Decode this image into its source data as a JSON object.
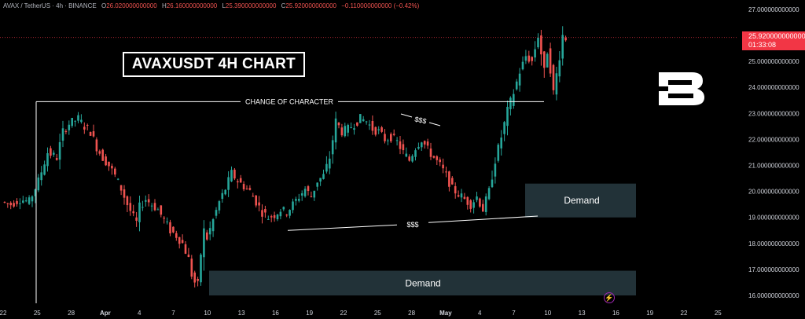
{
  "header": {
    "symbol": "AVAX / TetherUS · 4h · BINANCE",
    "o_label": "O",
    "o_value": "26.020000000000",
    "h_label": "H",
    "h_value": "26.160000000000",
    "l_label": "L",
    "l_value": "25.390000000000",
    "c_label": "C",
    "c_value": "25.920000000000",
    "change": "−0.110000000000 (−0.42%)"
  },
  "chart_title": "AVAXUSDT 4H CHART",
  "annotations": {
    "choch": "CHANGE OF CHARACTER",
    "liquidity_top": "$$$",
    "liquidity_bottom": "$$$",
    "demand_upper": "Demand",
    "demand_lower": "Demand"
  },
  "price_tag": {
    "price": "25.920000000000",
    "countdown": "01:33:08"
  },
  "colors": {
    "up": "#26a69a",
    "down": "#ef5350",
    "background": "#000000",
    "demand_zone": "#223238",
    "price_line": "#f23645"
  },
  "chart_data": {
    "type": "candlestick",
    "ylim": [
      15.75,
      27.3
    ],
    "yticks": [
      "27.000000000000",
      "26.000000000000",
      "25.000000000000",
      "24.000000000000",
      "23.000000000000",
      "22.000000000000",
      "21.000000000000",
      "20.000000000000",
      "19.000000000000",
      "18.000000000000",
      "17.000000000000",
      "16.000000000000"
    ],
    "ytick_values": [
      27,
      26,
      25,
      24,
      23,
      22,
      21,
      20,
      19,
      18,
      17,
      16
    ],
    "xticks": [
      "22",
      "25",
      "28",
      "Apr",
      "4",
      "7",
      "10",
      "13",
      "16",
      "19",
      "22",
      "25",
      "28",
      "May",
      "4",
      "7",
      "10",
      "13",
      "16",
      "19",
      "22",
      "25"
    ],
    "xtick_bold": [
      "Apr",
      "May"
    ],
    "last_price": 25.92,
    "path_points": [
      [
        0,
        19.6
      ],
      [
        3,
        19.5
      ],
      [
        6,
        19.7
      ],
      [
        9,
        19.6
      ],
      [
        12,
        20.4
      ],
      [
        15,
        21.5
      ],
      [
        18,
        21.3
      ],
      [
        20,
        22.3
      ],
      [
        22,
        22.6
      ],
      [
        25,
        22.8
      ],
      [
        27,
        22.5
      ],
      [
        29,
        22.3
      ],
      [
        31,
        21.7
      ],
      [
        33,
        21.3
      ],
      [
        35,
        21.0
      ],
      [
        37,
        20.6
      ],
      [
        39,
        20.1
      ],
      [
        41,
        19.5
      ],
      [
        43,
        19.0
      ],
      [
        44,
        18.8
      ],
      [
        45,
        19.4
      ],
      [
        47,
        19.7
      ],
      [
        49,
        19.5
      ],
      [
        51,
        19.3
      ],
      [
        53,
        18.9
      ],
      [
        55,
        18.5
      ],
      [
        57,
        18.3
      ],
      [
        59,
        18.0
      ],
      [
        61,
        17.4
      ],
      [
        62,
        16.8
      ],
      [
        63,
        16.5
      ],
      [
        64,
        16.4
      ],
      [
        65,
        17.6
      ],
      [
        66,
        18.5
      ],
      [
        67,
        18.2
      ],
      [
        69,
        18.9
      ],
      [
        71,
        19.6
      ],
      [
        73,
        20.1
      ],
      [
        75,
        20.7
      ],
      [
        77,
        20.4
      ],
      [
        79,
        20.2
      ],
      [
        81,
        20.0
      ],
      [
        83,
        19.6
      ],
      [
        85,
        19.2
      ],
      [
        87,
        19.0
      ],
      [
        89,
        19.1
      ],
      [
        91,
        19.3
      ],
      [
        93,
        19.2
      ],
      [
        95,
        19.5
      ],
      [
        97,
        19.8
      ],
      [
        99,
        20.1
      ],
      [
        101,
        19.8
      ],
      [
        103,
        20.4
      ],
      [
        105,
        20.6
      ],
      [
        107,
        21.3
      ],
      [
        109,
        22.7
      ],
      [
        111,
        22.3
      ],
      [
        113,
        22.4
      ],
      [
        115,
        22.6
      ],
      [
        117,
        22.8
      ],
      [
        119,
        22.7
      ],
      [
        121,
        22.4
      ],
      [
        123,
        22.3
      ],
      [
        125,
        22.0
      ],
      [
        127,
        22.1
      ],
      [
        129,
        21.9
      ],
      [
        131,
        21.5
      ],
      [
        133,
        21.2
      ],
      [
        135,
        21.7
      ],
      [
        137,
        22.0
      ],
      [
        139,
        21.6
      ],
      [
        141,
        21.3
      ],
      [
        143,
        21.0
      ],
      [
        145,
        20.6
      ],
      [
        147,
        20.1
      ],
      [
        149,
        19.9
      ],
      [
        151,
        19.7
      ],
      [
        153,
        19.5
      ],
      [
        155,
        19.8
      ],
      [
        157,
        19.3
      ],
      [
        159,
        20.0
      ],
      [
        161,
        21.2
      ],
      [
        163,
        22.1
      ],
      [
        165,
        23.1
      ],
      [
        167,
        23.8
      ],
      [
        169,
        24.6
      ],
      [
        171,
        25.2
      ],
      [
        173,
        25.0
      ],
      [
        175,
        26.0
      ],
      [
        176,
        25.3
      ],
      [
        177,
        24.6
      ],
      [
        178,
        25.4
      ],
      [
        179,
        24.7
      ],
      [
        180,
        23.8
      ],
      [
        181,
        24.5
      ],
      [
        182,
        25.2
      ],
      [
        183,
        26.0
      ],
      [
        184,
        25.9
      ]
    ],
    "demand_zones": [
      {
        "label": "Demand",
        "low": 19.0,
        "high": 20.3
      },
      {
        "label": "Demand",
        "low": 16.0,
        "high": 16.95
      }
    ],
    "choch_level": 23.45,
    "liquidity_line": {
      "from_price": 18.5,
      "to_price": 19.05
    }
  }
}
